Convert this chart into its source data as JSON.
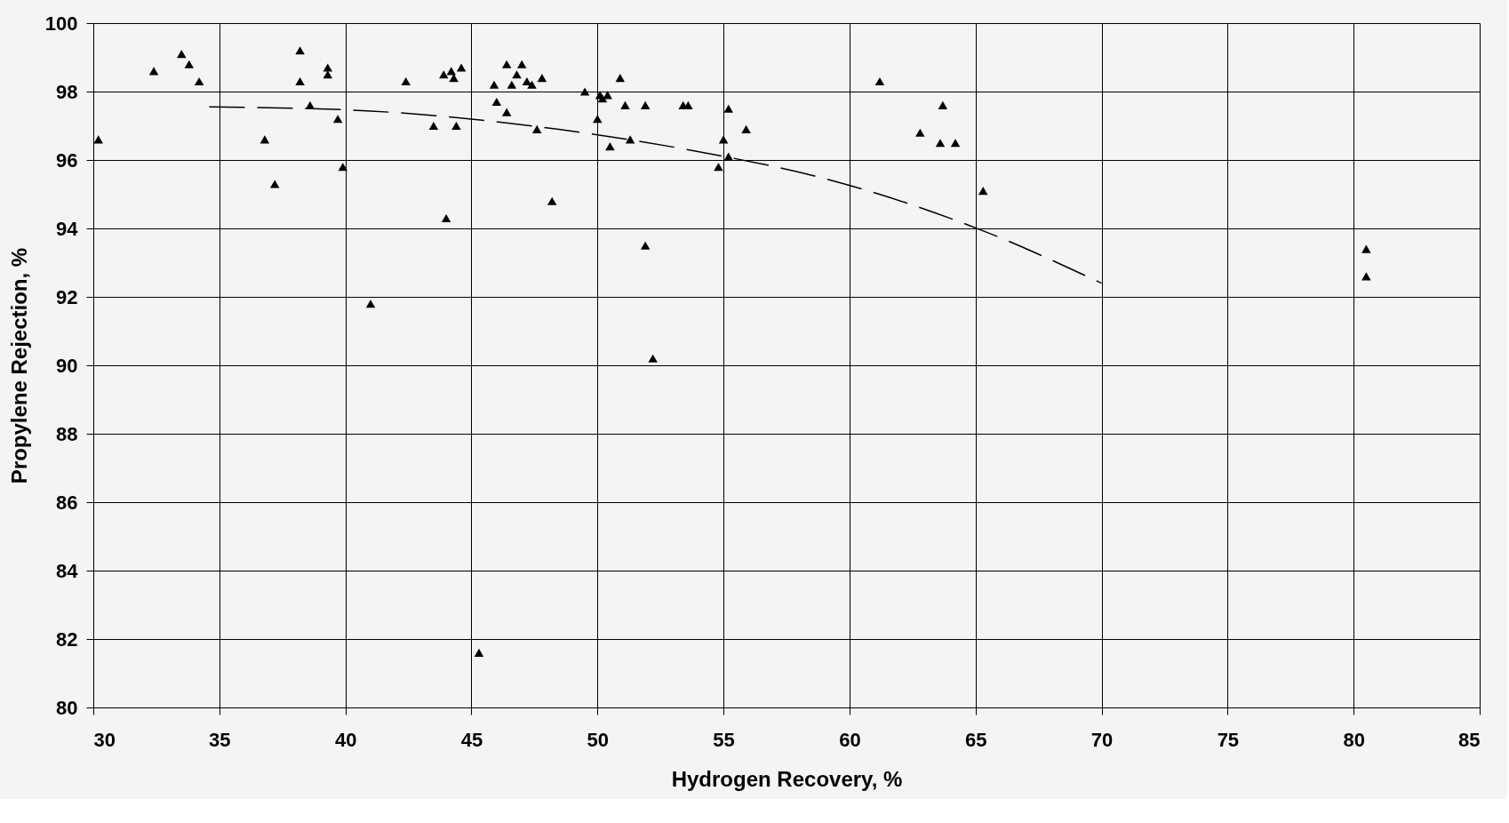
{
  "chart_data": {
    "type": "scatter",
    "xlabel": "Hydrogen Recovery, %",
    "ylabel": "Propylene Rejection, %",
    "xlim": [
      30,
      85
    ],
    "ylim": [
      80,
      100
    ],
    "xticks": [
      30,
      35,
      40,
      45,
      50,
      55,
      60,
      65,
      70,
      75,
      80,
      85
    ],
    "yticks": [
      80,
      82,
      84,
      86,
      88,
      90,
      92,
      94,
      96,
      98,
      100
    ],
    "grid": true,
    "marker": "triangle",
    "series": [
      {
        "color": "#000000",
        "x": [
          30.2,
          32.4,
          33.5,
          33.8,
          34.2,
          36.8,
          37.2,
          38.2,
          38.2,
          38.6,
          39.3,
          39.3,
          39.7,
          39.9,
          41.0,
          42.4,
          43.5,
          44.0,
          43.9,
          44.2,
          44.3,
          44.6,
          44.4,
          45.3,
          45.9,
          46.0,
          46.4,
          46.4,
          46.6,
          46.8,
          47.0,
          47.2,
          47.4,
          47.6,
          47.8,
          48.2,
          49.5,
          50.0,
          50.1,
          50.2,
          50.4,
          50.5,
          50.9,
          51.1,
          51.3,
          51.9,
          51.9,
          52.2,
          53.4,
          53.6,
          54.8,
          55.0,
          55.2,
          55.2,
          55.9,
          61.2,
          62.8,
          63.7,
          63.6,
          64.2,
          65.3,
          80.5,
          80.5
        ],
        "values": [
          96.6,
          98.6,
          99.1,
          98.8,
          98.3,
          96.6,
          95.3,
          99.2,
          98.3,
          97.6,
          98.7,
          98.5,
          97.2,
          95.8,
          91.8,
          98.3,
          97.0,
          94.3,
          98.5,
          98.6,
          98.4,
          98.7,
          97.0,
          81.6,
          98.2,
          97.7,
          98.8,
          97.4,
          98.2,
          98.5,
          98.8,
          98.3,
          98.2,
          96.9,
          98.4,
          94.8,
          98.0,
          97.2,
          97.9,
          97.8,
          97.9,
          96.4,
          98.4,
          97.6,
          96.6,
          97.6,
          93.5,
          90.2,
          97.6,
          97.6,
          95.8,
          96.6,
          96.1,
          97.5,
          96.9,
          98.3,
          96.8,
          97.6,
          96.5,
          96.5,
          95.1,
          93.4,
          92.6
        ]
      },
      {
        "type": "line",
        "color": "#000000",
        "line_style": "dashed",
        "marker": "none",
        "x": [
          34.6,
          40.2,
          48.4,
          53.6,
          59.8,
          65.4,
          70.0
        ],
        "values": [
          97.55,
          97.46,
          96.9,
          96.3,
          95.3,
          93.9,
          92.4
        ]
      }
    ]
  }
}
